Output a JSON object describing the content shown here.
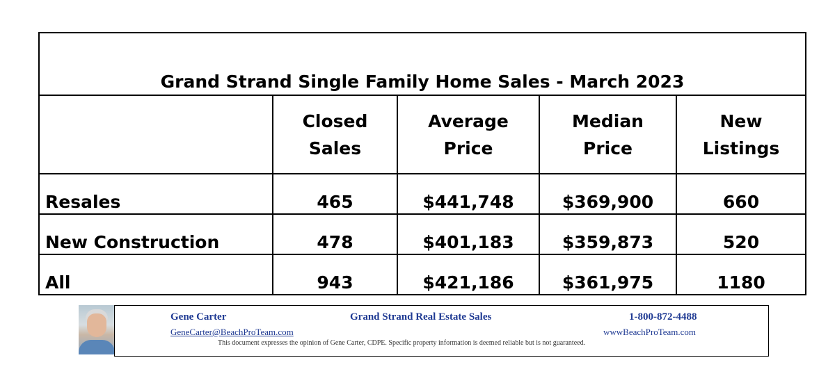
{
  "table": {
    "title": "Grand Strand Single Family Home Sales - March 2023",
    "headers": [
      {
        "line1": "Closed",
        "line2": "Sales"
      },
      {
        "line1": "Average",
        "line2": "Price"
      },
      {
        "line1": "Median",
        "line2": "Price"
      },
      {
        "line1": "New",
        "line2": "Listings"
      }
    ],
    "rows": [
      {
        "label": "Resales",
        "closed_sales": "465",
        "average_price": "$441,748",
        "median_price": "$369,900",
        "new_listings": "660"
      },
      {
        "label": "New Construction",
        "closed_sales": "478",
        "average_price": "$401,183",
        "median_price": "$359,873",
        "new_listings": "520"
      },
      {
        "label": "All",
        "closed_sales": "943",
        "average_price": "$421,186",
        "median_price": "$361,975",
        "new_listings": "1180"
      }
    ]
  },
  "footer": {
    "agent_name": "Gene Carter",
    "company": "Grand Strand Real Estate Sales",
    "phone": "1-800-872-4488",
    "email": "GeneCarter@BeachProTeam.com",
    "website": "wwwBeachProTeam.com",
    "disclaimer": "This document expresses the opinion of Gene Carter, CDPE.  Specific property information is deemed reliable but is not guaranteed.",
    "accent_color": "#1f3a93"
  }
}
